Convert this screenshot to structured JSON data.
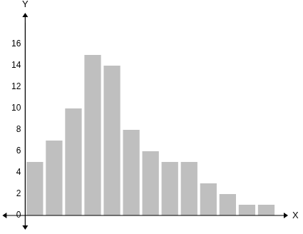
{
  "chart_data": {
    "type": "bar",
    "x_label": "X",
    "y_label": "Y",
    "categories": [
      null,
      null,
      null,
      null,
      null,
      null,
      null,
      null,
      null,
      null,
      null,
      null,
      null
    ],
    "values": [
      5,
      7,
      10,
      15,
      14,
      8,
      6,
      5,
      5,
      3,
      2,
      1,
      1
    ],
    "color": "#bfbfbf",
    "ylim": [
      0,
      18
    ],
    "yticks": [
      0,
      2,
      4,
      6,
      8,
      10,
      12,
      14,
      16
    ],
    "grid": false,
    "tick_labels": "y"
  }
}
